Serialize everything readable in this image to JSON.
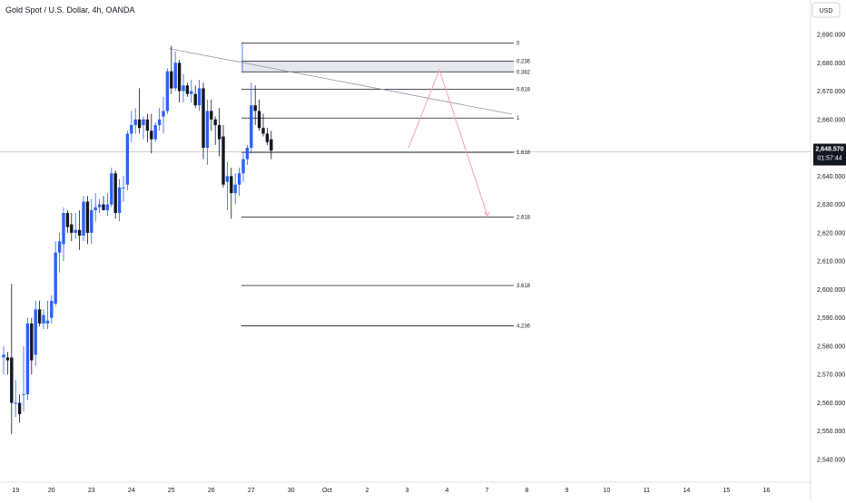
{
  "header": {
    "title": "Gold Spot / U.S. Dollar, 4h, OANDA"
  },
  "currency_button": {
    "label": "USD"
  },
  "price_tag": {
    "price": "2,648.570",
    "countdown": "01:57:44"
  },
  "colors": {
    "up": "#2962ff",
    "down": "#131722",
    "fib": "#131722",
    "trend": "#9598a1",
    "projection": "#f7a1b4",
    "tag_bg": "#131722"
  },
  "chart_data": {
    "type": "candlestick",
    "title": "Gold Spot / U.S. Dollar, 4h, OANDA",
    "ylim": [
      2535,
      2696
    ],
    "yticks": [
      "2,540.000",
      "2,550.000",
      "2,560.000",
      "2,570.000",
      "2,580.000",
      "2,590.000",
      "2,600.000",
      "2,610.000",
      "2,620.000",
      "2,630.000",
      "2,640.000",
      "2,650.000",
      "2,660.000",
      "2,670.000",
      "2,680.000",
      "2,690.000"
    ],
    "ytick_values": [
      2540,
      2550,
      2560,
      2570,
      2580,
      2590,
      2600,
      2610,
      2620,
      2630,
      2640,
      2650,
      2660,
      2670,
      2680,
      2690
    ],
    "xticks": [
      "19",
      "20",
      "23",
      "24",
      "25",
      "26",
      "27",
      "30",
      "Oct",
      "2",
      "3",
      "4",
      "7",
      "8",
      "9",
      "10",
      "11",
      "14",
      "15",
      "16"
    ],
    "xtick_index": [
      3,
      12,
      22,
      32,
      42,
      52,
      62,
      72,
      81,
      91,
      101,
      111,
      121,
      131,
      141,
      151,
      161,
      171,
      181,
      191
    ],
    "candles": [
      {
        "i": 0,
        "o": 2576,
        "h": 2580,
        "l": 2570,
        "c": 2577
      },
      {
        "i": 1,
        "o": 2576,
        "h": 2578,
        "l": 2570,
        "c": 2575
      },
      {
        "i": 2,
        "o": 2576,
        "h": 2602,
        "l": 2549,
        "c": 2560
      },
      {
        "i": 3,
        "o": 2560,
        "h": 2568,
        "l": 2555,
        "c": 2560
      },
      {
        "i": 4,
        "o": 2560,
        "h": 2563,
        "l": 2553,
        "c": 2556
      },
      {
        "i": 5,
        "o": 2563,
        "h": 2580,
        "l": 2557,
        "c": 2563
      },
      {
        "i": 6,
        "o": 2563,
        "h": 2590,
        "l": 2561,
        "c": 2588
      },
      {
        "i": 7,
        "o": 2588,
        "h": 2590,
        "l": 2570,
        "c": 2575
      },
      {
        "i": 8,
        "o": 2577,
        "h": 2596,
        "l": 2573,
        "c": 2593
      },
      {
        "i": 9,
        "o": 2593,
        "h": 2596,
        "l": 2587,
        "c": 2588
      },
      {
        "i": 10,
        "o": 2588,
        "h": 2593,
        "l": 2586,
        "c": 2591
      },
      {
        "i": 11,
        "o": 2588,
        "h": 2596,
        "l": 2586,
        "c": 2589
      },
      {
        "i": 12,
        "o": 2590,
        "h": 2598,
        "l": 2588,
        "c": 2596
      },
      {
        "i": 13,
        "o": 2595,
        "h": 2617,
        "l": 2594,
        "c": 2613
      },
      {
        "i": 14,
        "o": 2613,
        "h": 2620,
        "l": 2606,
        "c": 2617
      },
      {
        "i": 15,
        "o": 2616,
        "h": 2629,
        "l": 2610,
        "c": 2627
      },
      {
        "i": 16,
        "o": 2627,
        "h": 2628,
        "l": 2620,
        "c": 2622
      },
      {
        "i": 17,
        "o": 2623,
        "h": 2627,
        "l": 2617,
        "c": 2620
      },
      {
        "i": 18,
        "o": 2620,
        "h": 2627,
        "l": 2618,
        "c": 2621
      },
      {
        "i": 19,
        "o": 2621,
        "h": 2628,
        "l": 2614,
        "c": 2619
      },
      {
        "i": 20,
        "o": 2619,
        "h": 2633,
        "l": 2617,
        "c": 2631
      },
      {
        "i": 21,
        "o": 2631,
        "h": 2633,
        "l": 2616,
        "c": 2620
      },
      {
        "i": 22,
        "o": 2620,
        "h": 2632,
        "l": 2616,
        "c": 2628
      },
      {
        "i": 23,
        "o": 2628,
        "h": 2634,
        "l": 2624,
        "c": 2629
      },
      {
        "i": 24,
        "o": 2629,
        "h": 2632,
        "l": 2627,
        "c": 2630
      },
      {
        "i": 25,
        "o": 2630,
        "h": 2633,
        "l": 2628,
        "c": 2628
      },
      {
        "i": 26,
        "o": 2628,
        "h": 2634,
        "l": 2626,
        "c": 2630
      },
      {
        "i": 27,
        "o": 2630,
        "h": 2643,
        "l": 2629,
        "c": 2641
      },
      {
        "i": 28,
        "o": 2641,
        "h": 2642,
        "l": 2625,
        "c": 2627
      },
      {
        "i": 29,
        "o": 2627,
        "h": 2639,
        "l": 2624,
        "c": 2636
      },
      {
        "i": 30,
        "o": 2636,
        "h": 2640,
        "l": 2631,
        "c": 2636
      },
      {
        "i": 31,
        "o": 2637,
        "h": 2656,
        "l": 2635,
        "c": 2655
      },
      {
        "i": 32,
        "o": 2655,
        "h": 2663,
        "l": 2652,
        "c": 2658
      },
      {
        "i": 33,
        "o": 2658,
        "h": 2664,
        "l": 2655,
        "c": 2660
      },
      {
        "i": 34,
        "o": 2660,
        "h": 2671,
        "l": 2655,
        "c": 2657
      },
      {
        "i": 35,
        "o": 2658,
        "h": 2661,
        "l": 2653,
        "c": 2660
      },
      {
        "i": 36,
        "o": 2660,
        "h": 2662,
        "l": 2652,
        "c": 2656
      },
      {
        "i": 37,
        "o": 2656,
        "h": 2662,
        "l": 2648,
        "c": 2653
      },
      {
        "i": 38,
        "o": 2653,
        "h": 2659,
        "l": 2652,
        "c": 2658
      },
      {
        "i": 39,
        "o": 2658,
        "h": 2664,
        "l": 2656,
        "c": 2660
      },
      {
        "i": 40,
        "o": 2661,
        "h": 2668,
        "l": 2655,
        "c": 2663
      },
      {
        "i": 41,
        "o": 2663,
        "h": 2678,
        "l": 2662,
        "c": 2677
      },
      {
        "i": 42,
        "o": 2677,
        "h": 2686,
        "l": 2669,
        "c": 2671
      },
      {
        "i": 43,
        "o": 2671,
        "h": 2684,
        "l": 2670,
        "c": 2680
      },
      {
        "i": 44,
        "o": 2680,
        "h": 2681,
        "l": 2666,
        "c": 2670
      },
      {
        "i": 45,
        "o": 2670,
        "h": 2676,
        "l": 2666,
        "c": 2672
      },
      {
        "i": 46,
        "o": 2672,
        "h": 2673,
        "l": 2668,
        "c": 2669
      },
      {
        "i": 47,
        "o": 2669,
        "h": 2674,
        "l": 2666,
        "c": 2670
      },
      {
        "i": 48,
        "o": 2669,
        "h": 2672,
        "l": 2664,
        "c": 2665
      },
      {
        "i": 49,
        "o": 2665,
        "h": 2674,
        "l": 2663,
        "c": 2671
      },
      {
        "i": 50,
        "o": 2671,
        "h": 2673,
        "l": 2646,
        "c": 2650
      },
      {
        "i": 51,
        "o": 2650,
        "h": 2667,
        "l": 2644,
        "c": 2663
      },
      {
        "i": 52,
        "o": 2663,
        "h": 2667,
        "l": 2656,
        "c": 2660
      },
      {
        "i": 53,
        "o": 2660,
        "h": 2661,
        "l": 2651,
        "c": 2658
      },
      {
        "i": 54,
        "o": 2658,
        "h": 2664,
        "l": 2647,
        "c": 2653
      },
      {
        "i": 55,
        "o": 2654,
        "h": 2658,
        "l": 2636,
        "c": 2637
      },
      {
        "i": 56,
        "o": 2638,
        "h": 2645,
        "l": 2628,
        "c": 2640
      },
      {
        "i": 57,
        "o": 2640,
        "h": 2643,
        "l": 2625,
        "c": 2634
      },
      {
        "i": 58,
        "o": 2634,
        "h": 2641,
        "l": 2630,
        "c": 2637
      },
      {
        "i": 59,
        "o": 2637,
        "h": 2643,
        "l": 2633,
        "c": 2641
      },
      {
        "i": 60,
        "o": 2641,
        "h": 2648,
        "l": 2638,
        "c": 2646
      },
      {
        "i": 61,
        "o": 2646,
        "h": 2651,
        "l": 2644,
        "c": 2650
      },
      {
        "i": 62,
        "o": 2650,
        "h": 2673,
        "l": 2648,
        "c": 2665
      },
      {
        "i": 63,
        "o": 2665,
        "h": 2672,
        "l": 2658,
        "c": 2663
      },
      {
        "i": 64,
        "o": 2663,
        "h": 2667,
        "l": 2656,
        "c": 2657
      },
      {
        "i": 65,
        "o": 2657,
        "h": 2662,
        "l": 2654,
        "c": 2655
      },
      {
        "i": 66,
        "o": 2655,
        "h": 2657,
        "l": 2651,
        "c": 2652
      },
      {
        "i": 67,
        "o": 2653,
        "h": 2656,
        "l": 2646,
        "c": 2649
      }
    ],
    "candle_x0": 4,
    "candle_spacing": 4.4,
    "fibonacci": {
      "levels": [
        {
          "label": "0",
          "price": 2687
        },
        {
          "label": "0.236",
          "price": 2680.6
        },
        {
          "label": "0.382",
          "price": 2676.8
        },
        {
          "label": "0.618",
          "price": 2670.6
        },
        {
          "label": "1",
          "price": 2660.5
        },
        {
          "label": "1.618",
          "price": 2648.4
        },
        {
          "label": "2.618",
          "price": 2625.6
        },
        {
          "label": "3.618",
          "price": 2601.4
        },
        {
          "label": "4.236",
          "price": 2587.2
        }
      ]
    },
    "trendline": {
      "from": {
        "i": 41,
        "price": 2685
      },
      "to": {
        "i": 115,
        "price": 2662
      }
    },
    "projection": [
      {
        "i": 67,
        "price": 2650
      },
      {
        "i": 99,
        "price": 2677.5
      },
      {
        "i": 119,
        "price": 2626
      }
    ],
    "last_price": 2648.57
  }
}
